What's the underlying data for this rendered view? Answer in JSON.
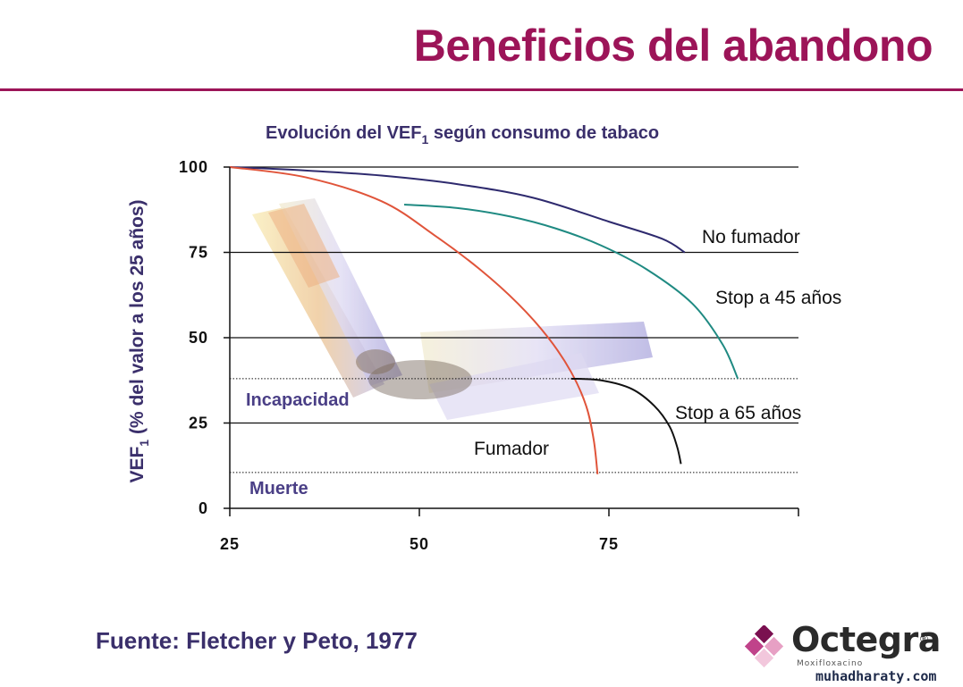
{
  "slide": {
    "title": "Beneficios del abandono",
    "source": "Fuente: Fletcher y Peto, 1977",
    "logo": {
      "name": "Octegra",
      "registered": "®",
      "subtitle": "Moxifloxacino",
      "icon": "diamond-cluster-icon"
    },
    "watermark": "muhadharaty.com",
    "colors": {
      "title": "#9c1458",
      "text": "#3a2f6b"
    }
  },
  "chart_data": {
    "type": "line",
    "title": {
      "main": "Evolución del VEF",
      "sub": "1",
      "rest": " según consumo de tabaco"
    },
    "ylabel": {
      "main": "VEF",
      "sub": "1",
      "rest": " (% del valor a los 25 años)"
    },
    "xlabel": "",
    "xlim": [
      25,
      100
    ],
    "ylim": [
      0,
      100
    ],
    "x_ticks": [
      {
        "value": 25,
        "label": "25"
      },
      {
        "value": 50,
        "label": "50"
      },
      {
        "value": 75,
        "label": "75"
      }
    ],
    "y_ticks": [
      {
        "value": 0,
        "label": "0"
      },
      {
        "value": 25,
        "label": "25"
      },
      {
        "value": 50,
        "label": "50"
      },
      {
        "value": 75,
        "label": "75"
      },
      {
        "value": 100,
        "label": "100"
      }
    ],
    "grid": {
      "y": [
        25,
        50,
        75,
        100
      ]
    },
    "thresholds": [
      {
        "name": "Incapacidad",
        "value": 38
      },
      {
        "name": "Muerte",
        "value": 10.5
      }
    ],
    "decoration": "cigarette-illustration",
    "series": [
      {
        "name": "No fumador",
        "color": "#2e2a6e",
        "points": [
          [
            25,
            100
          ],
          [
            35,
            99
          ],
          [
            45,
            97.5
          ],
          [
            55,
            95
          ],
          [
            65,
            91
          ],
          [
            75,
            84
          ],
          [
            82,
            79
          ],
          [
            85,
            75
          ]
        ]
      },
      {
        "name": "Stop a 45 años",
        "color": "#1f8a82",
        "points": [
          [
            48,
            89
          ],
          [
            55,
            88
          ],
          [
            62,
            85.5
          ],
          [
            68,
            82
          ],
          [
            74,
            77
          ],
          [
            80,
            70
          ],
          [
            86,
            60
          ],
          [
            90,
            48
          ],
          [
            92,
            38
          ]
        ]
      },
      {
        "name": "Fumador",
        "color": "#e0543a",
        "points": [
          [
            25,
            100
          ],
          [
            35,
            97
          ],
          [
            45,
            90
          ],
          [
            52,
            80
          ],
          [
            58,
            70
          ],
          [
            63,
            60
          ],
          [
            67,
            50
          ],
          [
            70,
            40
          ],
          [
            72,
            30
          ],
          [
            73,
            20
          ],
          [
            73.5,
            10
          ]
        ]
      },
      {
        "name": "Stop a 65 años",
        "color": "#111111",
        "points": [
          [
            70,
            38
          ],
          [
            74,
            37.5
          ],
          [
            78,
            35
          ],
          [
            81,
            30
          ],
          [
            83,
            24
          ],
          [
            84,
            18
          ],
          [
            84.5,
            13
          ]
        ]
      }
    ]
  }
}
